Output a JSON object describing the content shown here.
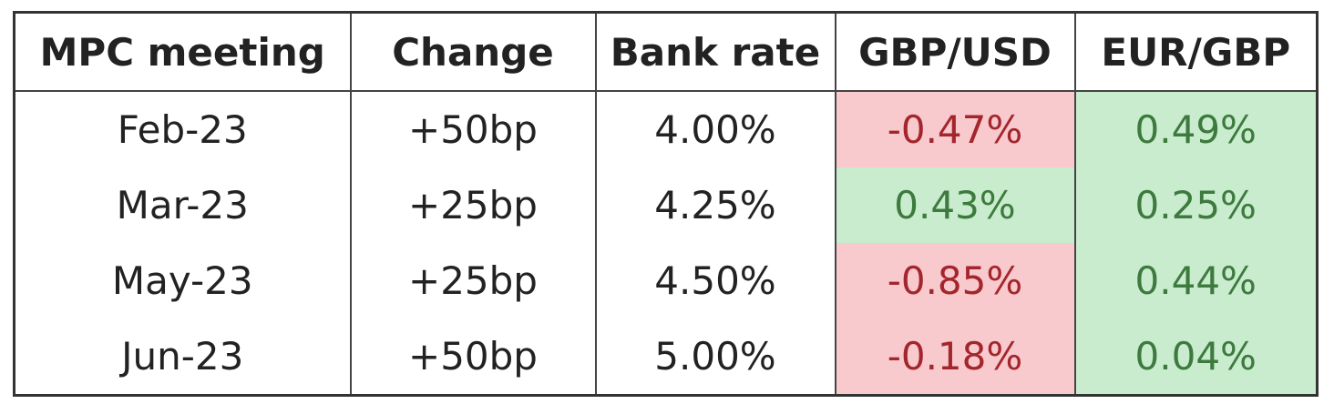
{
  "table": {
    "header": [
      "MPC meeting",
      "Change",
      "Bank rate",
      "GBP/USD",
      "EUR/GBP"
    ],
    "rows": [
      [
        "Feb-23",
        "+50bp",
        "4.00%",
        "-0.47%",
        "0.49%"
      ],
      [
        "Mar-23",
        "+25bp",
        "4.25%",
        "0.43%",
        "0.25%"
      ],
      [
        "May-23",
        "+25bp",
        "4.50%",
        "-0.85%",
        "0.44%"
      ],
      [
        "Jun-23",
        "+50bp",
        "5.00%",
        "-0.18%",
        "0.04%"
      ]
    ],
    "cell_colors": [
      [
        null,
        null,
        null,
        "red",
        "green"
      ],
      [
        null,
        null,
        null,
        "green",
        "green"
      ],
      [
        null,
        null,
        null,
        "red",
        "green"
      ],
      [
        null,
        null,
        null,
        "red",
        "green"
      ]
    ]
  }
}
